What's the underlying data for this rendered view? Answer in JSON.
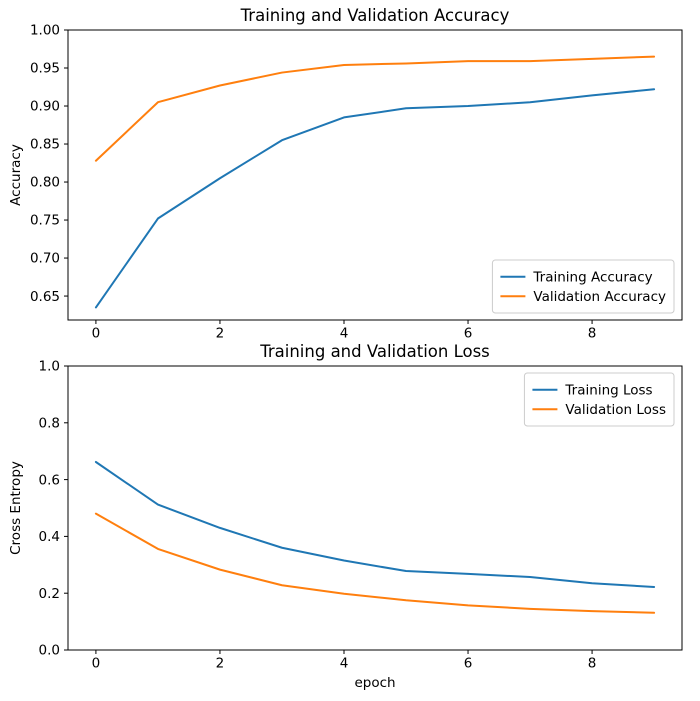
{
  "figure": {
    "background": "#ffffff",
    "axis_color": "#000000",
    "legend_border_color": "#cccccc",
    "series_colors": {
      "blue": "#1f77b4",
      "orange": "#ff7f0e"
    }
  },
  "chart_data": [
    {
      "type": "line",
      "id": "accuracy",
      "title": "Training and Validation Accuracy",
      "xlabel": "",
      "ylabel": "Accuracy",
      "x": [
        0,
        1,
        2,
        3,
        4,
        5,
        6,
        7,
        8,
        9
      ],
      "series": [
        {
          "name": "Training Accuracy",
          "color": "#1f77b4",
          "values": [
            0.635,
            0.752,
            0.805,
            0.855,
            0.885,
            0.897,
            0.9,
            0.905,
            0.914,
            0.922
          ]
        },
        {
          "name": "Validation Accuracy",
          "color": "#ff7f0e",
          "values": [
            0.828,
            0.905,
            0.927,
            0.944,
            0.954,
            0.956,
            0.959,
            0.959,
            0.962,
            0.965
          ]
        }
      ],
      "xlim": [
        -0.45,
        9.45
      ],
      "ylim": [
        0.6185,
        1.0
      ],
      "xticks": [
        0,
        2,
        4,
        6,
        8
      ],
      "xtick_labels": [
        "0",
        "2",
        "4",
        "6",
        "8"
      ],
      "yticks": [
        0.65,
        0.7,
        0.75,
        0.8,
        0.85,
        0.9,
        0.95,
        1.0
      ],
      "ytick_labels": [
        "0.65",
        "0.70",
        "0.75",
        "0.80",
        "0.85",
        "0.90",
        "0.95",
        "1.00"
      ],
      "grid": false,
      "legend": {
        "position": "lower right",
        "entries": [
          "Training Accuracy",
          "Validation Accuracy"
        ]
      }
    },
    {
      "type": "line",
      "id": "loss",
      "title": "Training and Validation Loss",
      "xlabel": "epoch",
      "ylabel": "Cross Entropy",
      "x": [
        0,
        1,
        2,
        3,
        4,
        5,
        6,
        7,
        8,
        9
      ],
      "series": [
        {
          "name": "Training Loss",
          "color": "#1f77b4",
          "values": [
            0.662,
            0.512,
            0.43,
            0.36,
            0.315,
            0.278,
            0.268,
            0.257,
            0.235,
            0.222
          ]
        },
        {
          "name": "Validation Loss",
          "color": "#ff7f0e",
          "values": [
            0.48,
            0.356,
            0.283,
            0.228,
            0.198,
            0.175,
            0.157,
            0.145,
            0.137,
            0.131
          ]
        }
      ],
      "xlim": [
        -0.45,
        9.45
      ],
      "ylim": [
        0.0,
        1.0
      ],
      "xticks": [
        0,
        2,
        4,
        6,
        8
      ],
      "xtick_labels": [
        "0",
        "2",
        "4",
        "6",
        "8"
      ],
      "yticks": [
        0.0,
        0.2,
        0.4,
        0.6,
        0.8,
        1.0
      ],
      "ytick_labels": [
        "0.0",
        "0.2",
        "0.4",
        "0.6",
        "0.8",
        "1.0"
      ],
      "grid": false,
      "legend": {
        "position": "upper right",
        "entries": [
          "Training Loss",
          "Validation Loss"
        ]
      }
    }
  ]
}
